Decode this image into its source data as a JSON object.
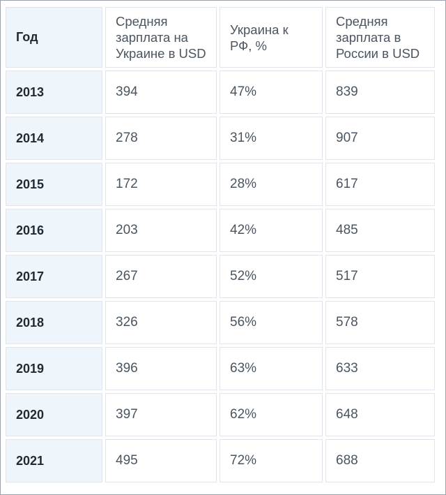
{
  "table": {
    "headers": {
      "year": "Год",
      "ua_salary": "Средняя зарплата на Украине в USD",
      "ratio": "Украина к РФ, %",
      "ru_salary": "Средняя зарплата в России в USD"
    },
    "rows": [
      {
        "year": "2013",
        "ua_salary": "394",
        "ratio": "47%",
        "ru_salary": "839"
      },
      {
        "year": "2014",
        "ua_salary": "278",
        "ratio": "31%",
        "ru_salary": "907"
      },
      {
        "year": "2015",
        "ua_salary": "172",
        "ratio": "28%",
        "ru_salary": "617"
      },
      {
        "year": "2016",
        "ua_salary": "203",
        "ratio": "42%",
        "ru_salary": "485"
      },
      {
        "year": "2017",
        "ua_salary": "267",
        "ratio": "52%",
        "ru_salary": "517"
      },
      {
        "year": "2018",
        "ua_salary": "326",
        "ratio": "56%",
        "ru_salary": "578"
      },
      {
        "year": "2019",
        "ua_salary": "396",
        "ratio": "63%",
        "ru_salary": "633"
      },
      {
        "year": "2020",
        "ua_salary": "397",
        "ratio": "62%",
        "ru_salary": "648"
      },
      {
        "year": "2021",
        "ua_salary": "495",
        "ratio": "72%",
        "ru_salary": "688"
      }
    ]
  },
  "colors": {
    "year_column_bg": "#eef6fc",
    "cell_border": "#dfe5ea",
    "frame_border": "#9aa3ab"
  }
}
